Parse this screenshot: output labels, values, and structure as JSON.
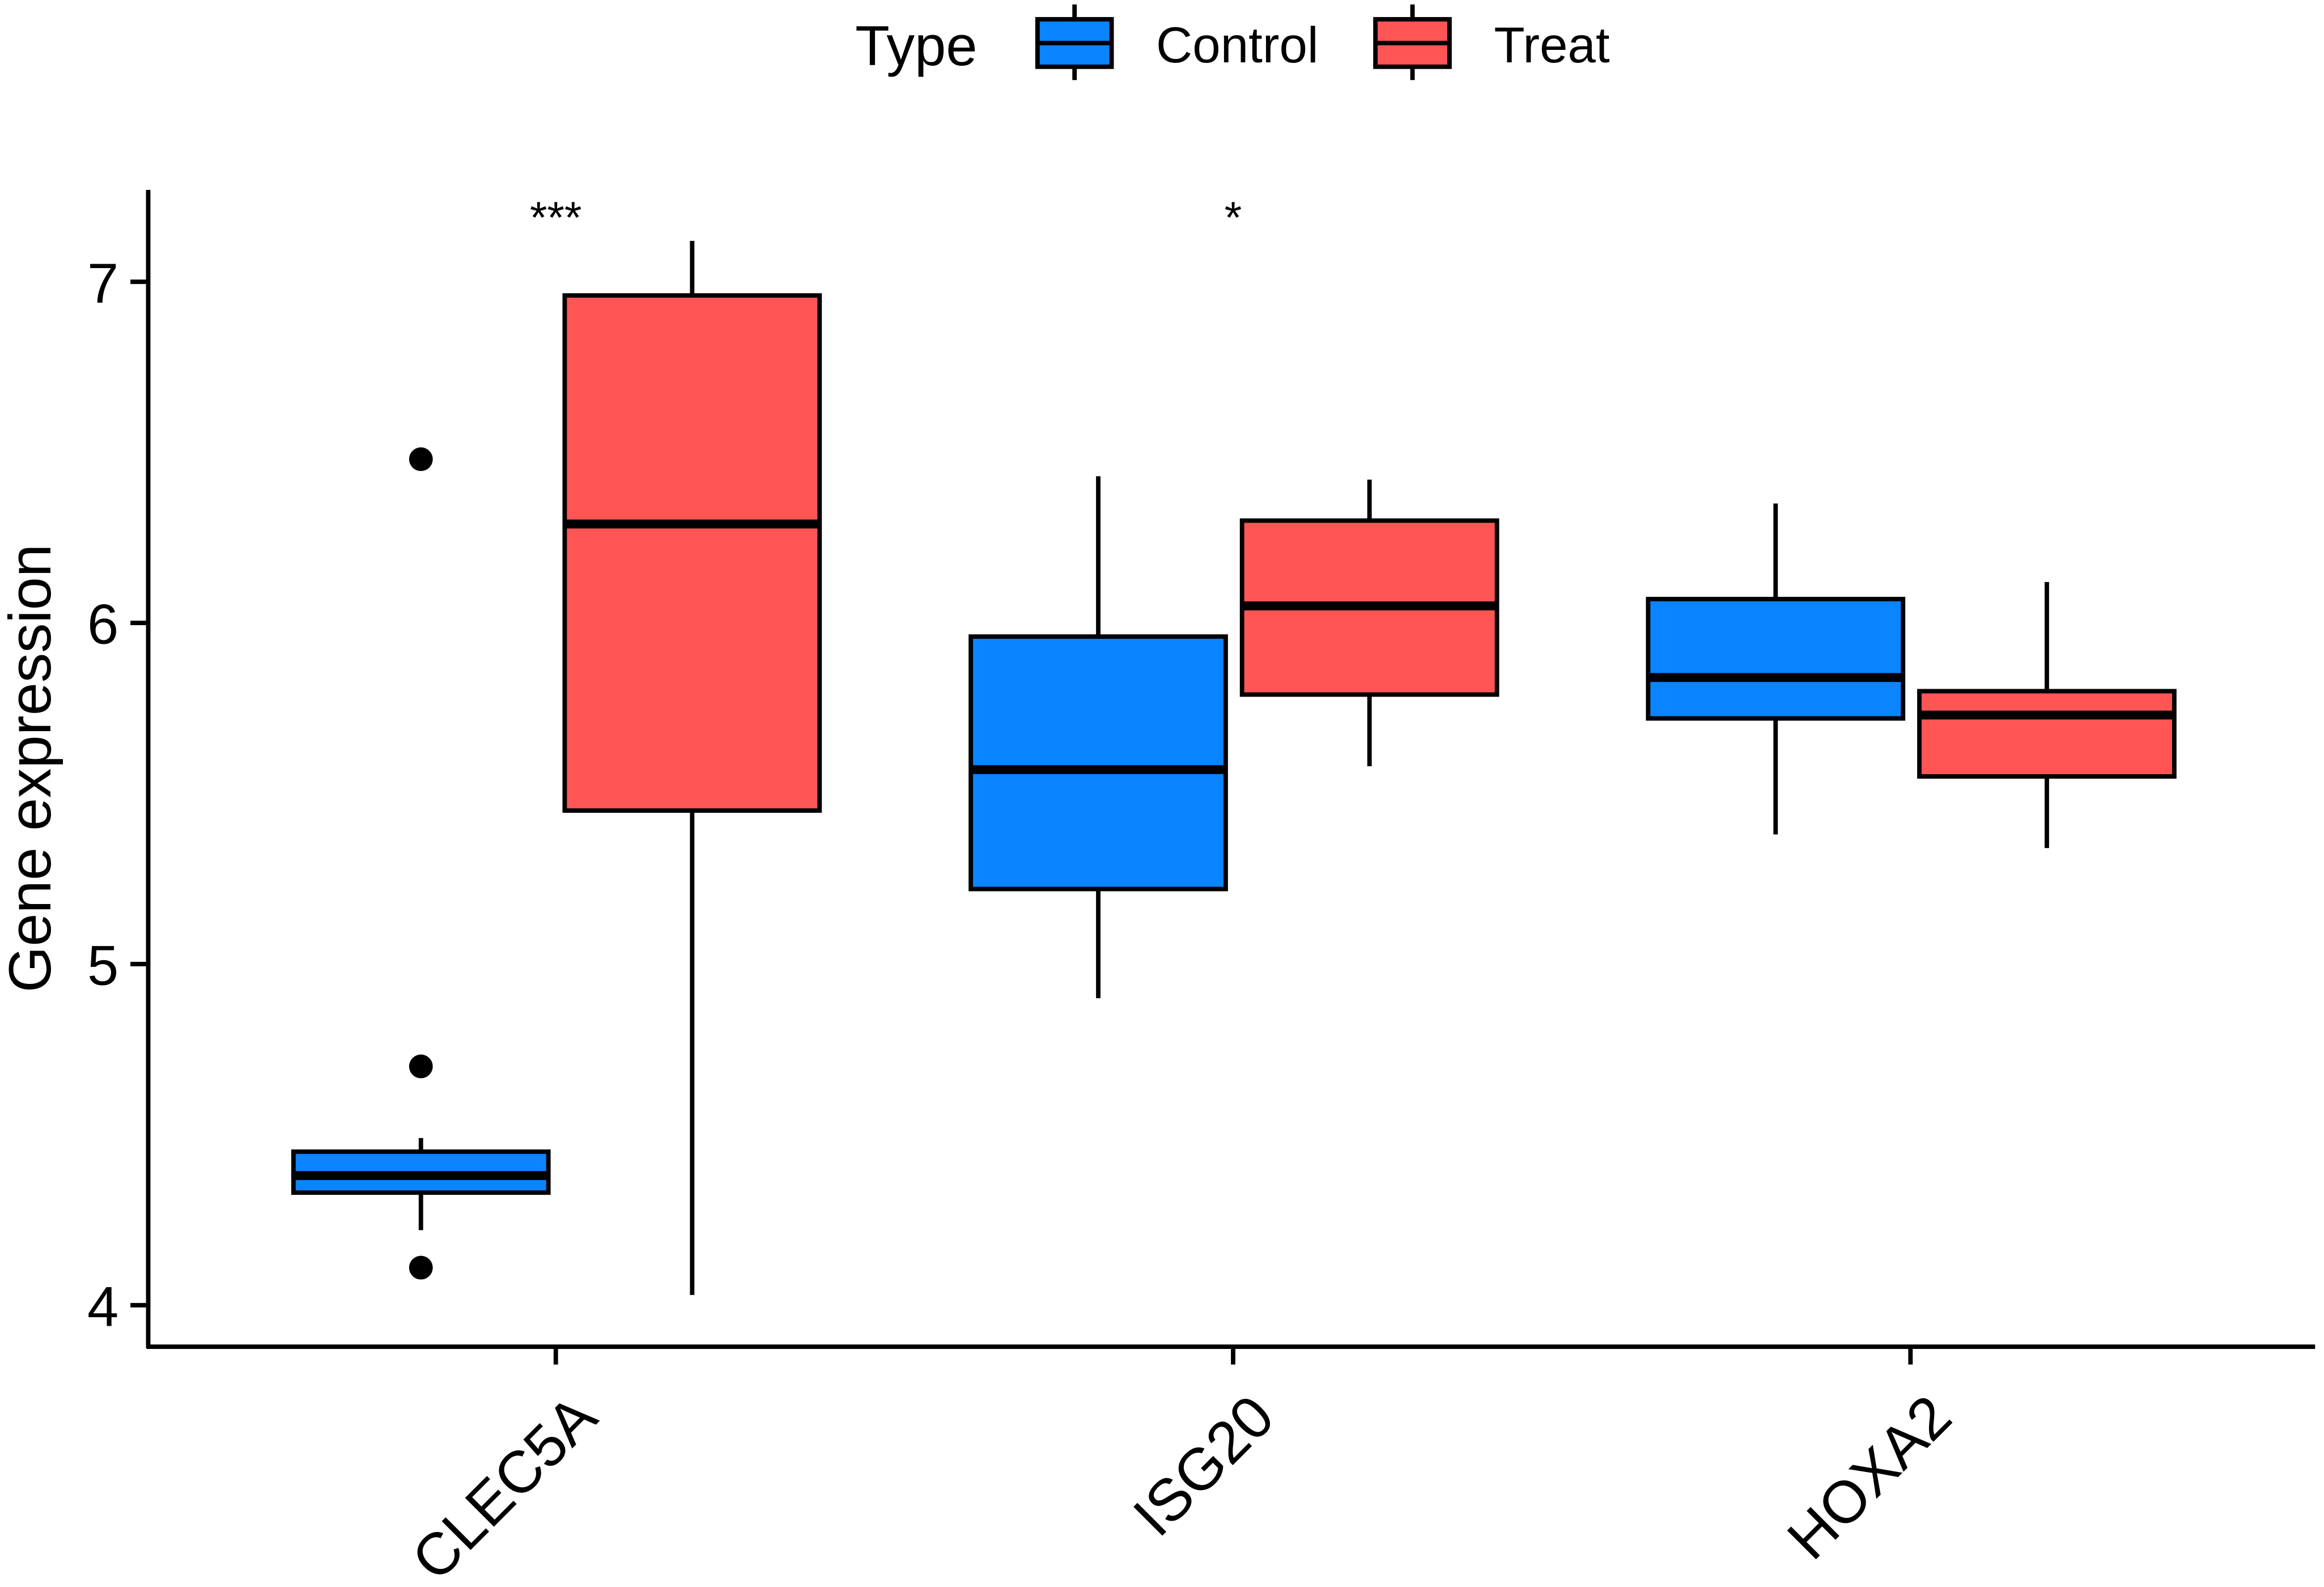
{
  "chart_data": {
    "type": "boxplot",
    "title": "",
    "xlabel": "",
    "ylabel": "Gene expression",
    "ylim": [
      3.87,
      7.27
    ],
    "yticks": [
      4,
      5,
      6,
      7
    ],
    "grid": false,
    "legend": {
      "title": "Type",
      "placement": "top",
      "entries": [
        "Control",
        "Treat"
      ]
    },
    "colors": {
      "Control": "#0A84FF",
      "Treat": "#FF5555"
    },
    "categories": [
      "CLEC5A",
      "ISG20",
      "HOXA2"
    ],
    "significance": [
      "***",
      "*",
      ""
    ],
    "series": [
      {
        "name": "Control",
        "boxes": [
          {
            "whisker_low": 4.22,
            "q1": 4.33,
            "median": 4.38,
            "q3": 4.45,
            "whisker_high": 4.49,
            "outliers": [
              6.48,
              4.7,
              4.11
            ]
          },
          {
            "whisker_low": 4.9,
            "q1": 5.22,
            "median": 5.57,
            "q3": 5.96,
            "whisker_high": 6.43,
            "outliers": []
          },
          {
            "whisker_low": 5.38,
            "q1": 5.72,
            "median": 5.84,
            "q3": 6.07,
            "whisker_high": 6.35,
            "outliers": []
          }
        ]
      },
      {
        "name": "Treat",
        "boxes": [
          {
            "whisker_low": 4.03,
            "q1": 5.45,
            "median": 6.29,
            "q3": 6.96,
            "whisker_high": 7.12,
            "outliers": []
          },
          {
            "whisker_low": 5.58,
            "q1": 5.79,
            "median": 6.05,
            "q3": 6.3,
            "whisker_high": 6.42,
            "outliers": []
          },
          {
            "whisker_low": 5.34,
            "q1": 5.55,
            "median": 5.73,
            "q3": 5.8,
            "whisker_high": 6.12,
            "outliers": []
          }
        ]
      }
    ]
  }
}
